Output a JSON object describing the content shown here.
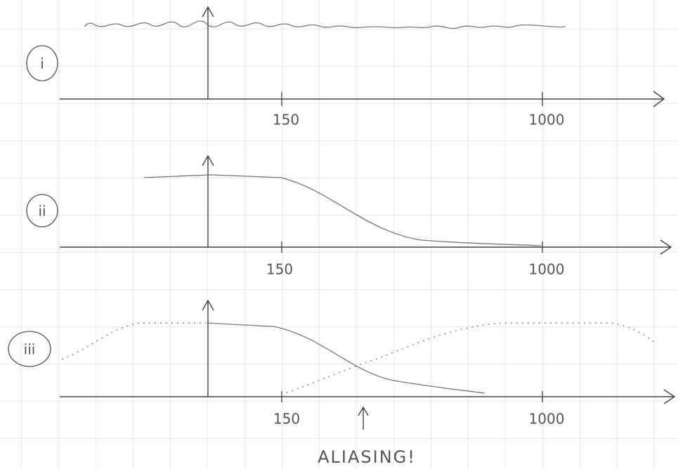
{
  "panels": [
    {
      "label": "i",
      "ticks": [
        "150",
        "1000"
      ]
    },
    {
      "label": "ii",
      "ticks": [
        "150",
        "1000"
      ]
    },
    {
      "label": "iii",
      "ticks": [
        "150",
        "1000"
      ]
    }
  ],
  "annotation": "ALIASING!"
}
